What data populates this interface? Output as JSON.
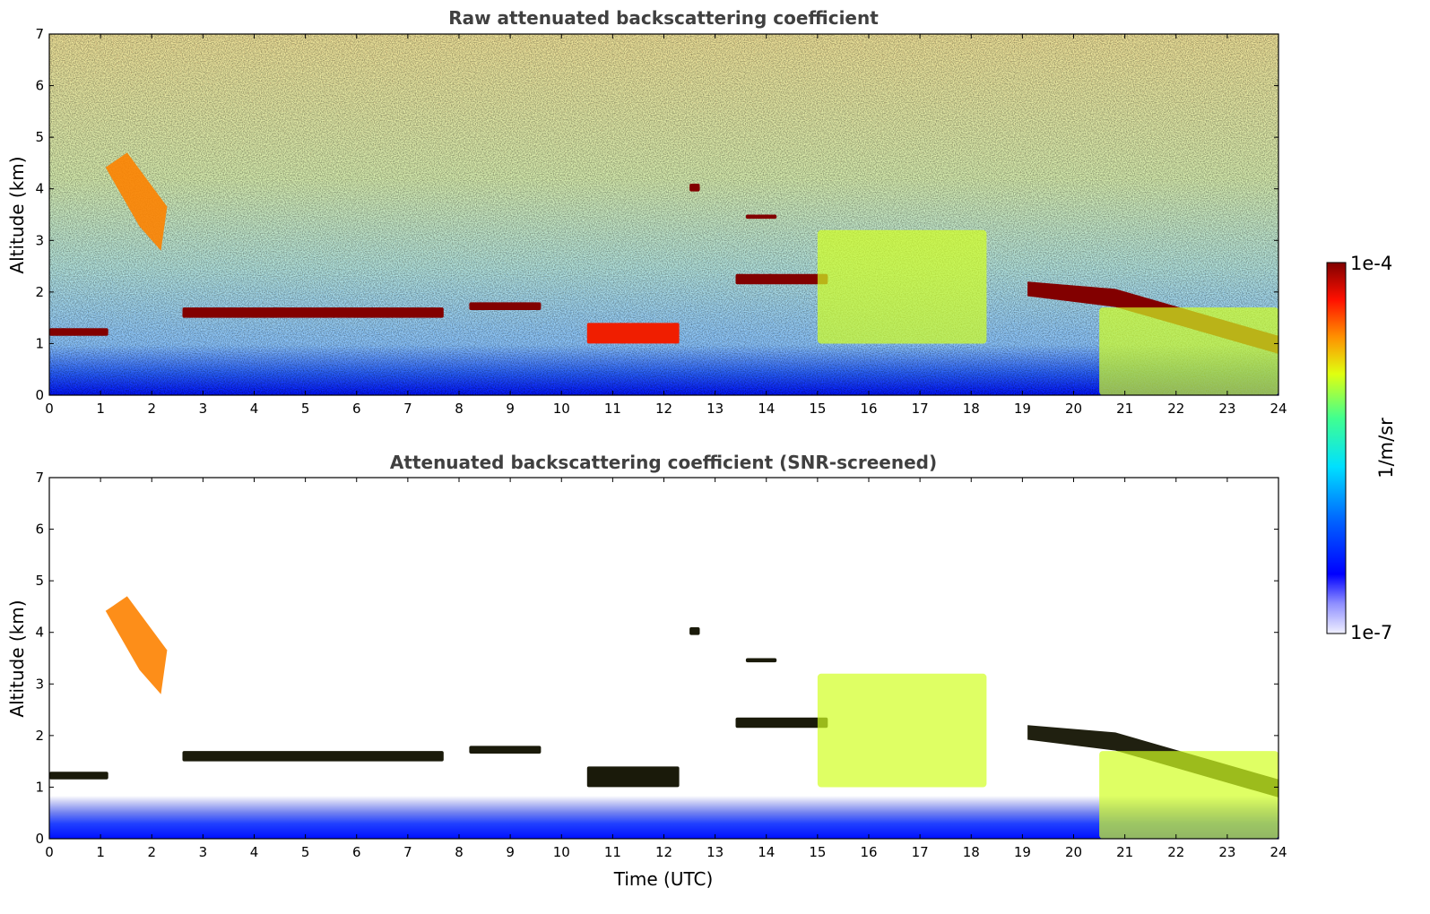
{
  "chart_data": [
    {
      "type": "heatmap",
      "title": "Raw attenuated backscattering coefficient",
      "xlabel": "",
      "ylabel": "Altitude (km)",
      "xlim": [
        0,
        24
      ],
      "ylim": [
        0,
        7
      ],
      "x_ticks": [
        "0",
        "1",
        "2",
        "3",
        "4",
        "5",
        "6",
        "7",
        "8",
        "9",
        "10",
        "11",
        "12",
        "13",
        "14",
        "15",
        "16",
        "17",
        "18",
        "19",
        "20",
        "21",
        "22",
        "23",
        "24"
      ],
      "y_ticks": [
        "0",
        "1",
        "2",
        "3",
        "4",
        "5",
        "6",
        "7"
      ],
      "features": [
        {
          "name": "low cloud layer",
          "x": [
            0.0,
            1.15
          ],
          "y": [
            1.15,
            1.3
          ],
          "level": 1.0
        },
        {
          "name": "cirrus fall streak",
          "x": [
            1.1,
            2.3
          ],
          "y": [
            2.8,
            4.7
          ],
          "level": 0.8
        },
        {
          "name": "cloud layer",
          "x": [
            2.6,
            7.7
          ],
          "y": [
            1.5,
            1.7
          ],
          "level": 1.0
        },
        {
          "name": "cloud layer",
          "x": [
            8.2,
            9.6
          ],
          "y": [
            1.65,
            1.8
          ],
          "level": 1.0
        },
        {
          "name": "broken cloud",
          "x": [
            10.5,
            12.3
          ],
          "y": [
            1.0,
            1.4
          ],
          "level": 0.9
        },
        {
          "name": "cloud patch",
          "x": [
            12.5,
            12.7
          ],
          "y": [
            3.95,
            4.1
          ],
          "level": 1.0
        },
        {
          "name": "cloud patch",
          "x": [
            13.6,
            14.2
          ],
          "y": [
            3.42,
            3.5
          ],
          "level": 1.0
        },
        {
          "name": "cloud layer",
          "x": [
            13.4,
            15.2
          ],
          "y": [
            2.15,
            2.35
          ],
          "level": 1.0
        },
        {
          "name": "convective cloud",
          "x": [
            15.0,
            18.3
          ],
          "y": [
            1.0,
            3.2
          ],
          "level": 0.6
        },
        {
          "name": "descending cloud layer",
          "x": [
            19.1,
            24.0
          ],
          "y": [
            0.8,
            2.2
          ],
          "level": 1.0
        },
        {
          "name": "boundary layer aerosol",
          "x": [
            20.5,
            24.0
          ],
          "y": [
            0.0,
            1.7
          ],
          "level": 0.6
        }
      ]
    },
    {
      "type": "heatmap",
      "title": "Attenuated backscattering coefficient (SNR-screened)",
      "xlabel": "Time (UTC)",
      "ylabel": "Altitude (km)",
      "xlim": [
        0,
        24
      ],
      "ylim": [
        0,
        7
      ],
      "x_ticks": [
        "0",
        "1",
        "2",
        "3",
        "4",
        "5",
        "6",
        "7",
        "8",
        "9",
        "10",
        "11",
        "12",
        "13",
        "14",
        "15",
        "16",
        "17",
        "18",
        "19",
        "20",
        "21",
        "22",
        "23",
        "24"
      ],
      "y_ticks": [
        "0",
        "1",
        "2",
        "3",
        "4",
        "5",
        "6",
        "7"
      ],
      "features": [
        {
          "name": "low cloud layer",
          "x": [
            0.0,
            1.15
          ],
          "y": [
            1.15,
            1.3
          ],
          "level": 1.0
        },
        {
          "name": "cirrus fall streak",
          "x": [
            1.1,
            2.3
          ],
          "y": [
            2.8,
            4.7
          ],
          "level": 0.8
        },
        {
          "name": "cloud layer",
          "x": [
            2.6,
            7.7
          ],
          "y": [
            1.5,
            1.7
          ],
          "level": 1.0
        },
        {
          "name": "cloud layer",
          "x": [
            8.2,
            9.6
          ],
          "y": [
            1.65,
            1.8
          ],
          "level": 1.0
        },
        {
          "name": "broken cloud",
          "x": [
            10.5,
            12.3
          ],
          "y": [
            1.0,
            1.4
          ],
          "level": 0.9
        },
        {
          "name": "cloud patch",
          "x": [
            12.5,
            12.7
          ],
          "y": [
            3.95,
            4.1
          ],
          "level": 1.0
        },
        {
          "name": "cloud patch",
          "x": [
            13.6,
            14.2
          ],
          "y": [
            3.42,
            3.5
          ],
          "level": 1.0
        },
        {
          "name": "cloud layer",
          "x": [
            13.4,
            15.2
          ],
          "y": [
            2.15,
            2.35
          ],
          "level": 1.0
        },
        {
          "name": "convective cloud",
          "x": [
            15.0,
            18.3
          ],
          "y": [
            1.0,
            3.2
          ],
          "level": 0.6
        },
        {
          "name": "descending cloud layer",
          "x": [
            19.1,
            24.0
          ],
          "y": [
            0.8,
            2.2
          ],
          "level": 1.0
        },
        {
          "name": "boundary layer aerosol",
          "x": [
            20.5,
            24.0
          ],
          "y": [
            0.0,
            1.7
          ],
          "level": 0.6
        }
      ]
    }
  ],
  "colorbar": {
    "label": "1/m/sr",
    "max_label": "1e-4",
    "min_label": "1e-7",
    "range": [
      1e-07,
      0.0001
    ],
    "scale": "log",
    "colormap": [
      "#f0f0ff",
      "#0000ff",
      "#00ffff",
      "#ffff00",
      "#ff0000",
      "#800000"
    ]
  }
}
